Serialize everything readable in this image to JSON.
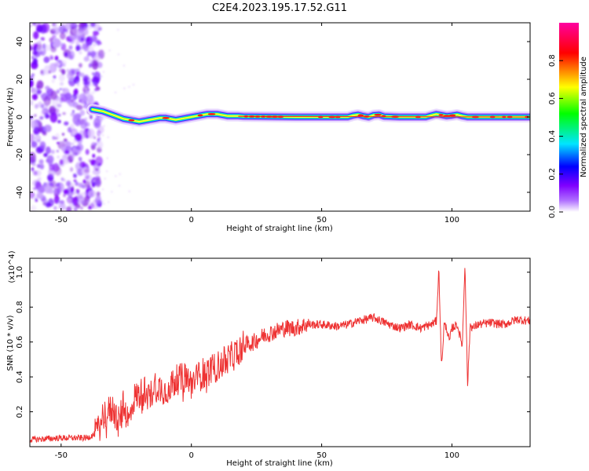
{
  "figure_title": "C2E4.2023.195.17.52.G11",
  "chart_data": [
    {
      "type": "heatmap",
      "title": "",
      "xlabel": "Height of straight line (km)",
      "ylabel": "Frequency (Hz)",
      "xlim": [
        -62,
        130
      ],
      "ylim": [
        -50,
        50
      ],
      "xticks": [
        -50,
        0,
        50,
        100
      ],
      "yticks": [
        -40,
        -20,
        0,
        20,
        40
      ],
      "grid": false,
      "noise_region_x": [
        -62,
        -37
      ],
      "ridge": {
        "x": [
          -38,
          -36,
          -34,
          -32,
          -30,
          -28,
          -26,
          -24,
          -22,
          -20,
          -18,
          -16,
          -14,
          -12,
          -10,
          -8,
          -6,
          -4,
          -2,
          0,
          2,
          4,
          6,
          8,
          10,
          12,
          14,
          16,
          18,
          20,
          40,
          60,
          62,
          64,
          66,
          68,
          70,
          72,
          74,
          80,
          90,
          92,
          94,
          96,
          98,
          100,
          102,
          104,
          106,
          110,
          130
        ],
        "freq_hz": [
          4,
          3.5,
          3,
          2,
          1,
          0,
          -1,
          -1.5,
          -2,
          -2.5,
          -2,
          -1.5,
          -1,
          -0.5,
          -0.5,
          -1,
          -1.5,
          -1,
          -0.5,
          0,
          0.5,
          1,
          1.5,
          1.5,
          1.5,
          1,
          0.5,
          0.5,
          0.5,
          0.3,
          0,
          0,
          0.8,
          1.2,
          0.5,
          0,
          1,
          1.2,
          0.3,
          0,
          0,
          0.8,
          1.5,
          1,
          0.5,
          0.8,
          1.2,
          0.5,
          0,
          0,
          0
        ]
      },
      "colorbar": {
        "label": "Normalized spectral amplitude",
        "range": [
          0,
          1
        ],
        "ticks": [
          "0.0",
          "0.2",
          "0.4",
          "0.6",
          "0.8"
        ],
        "tick_values": [
          0,
          0.2,
          0.4,
          0.6,
          0.8
        ],
        "colors": [
          "#ffffff",
          "#7f00ff",
          "#0000ff",
          "#00e5ff",
          "#00ff00",
          "#ffff00",
          "#ff0000",
          "#ff00a0"
        ]
      }
    },
    {
      "type": "line",
      "title": "",
      "xlabel": "Height of straight line (km)",
      "ylabel": "SNR (10 * v/v)",
      "y_multiplier": "(x10^4)",
      "xlim": [
        -62,
        130
      ],
      "ylim": [
        0,
        1.08
      ],
      "xticks": [
        -50,
        0,
        50,
        100
      ],
      "yticks": [
        "0.2",
        "0.4",
        "0.6",
        "0.8",
        "1.0"
      ],
      "ytick_values": [
        0.2,
        0.4,
        0.6,
        0.8,
        1.0
      ],
      "grid": false,
      "series": [
        {
          "color": "#ee3333",
          "x": [
            -62,
            -50,
            -40,
            -36,
            -34,
            -32,
            -30,
            -28,
            -26,
            -24,
            -22,
            -20,
            -18,
            -16,
            -14,
            -12,
            -10,
            -6,
            -2,
            0,
            4,
            8,
            12,
            16,
            20,
            24,
            28,
            32,
            36,
            40,
            44,
            50,
            56,
            60,
            64,
            70,
            76,
            80,
            84,
            88,
            92,
            94,
            95,
            96,
            97,
            98,
            99,
            100,
            102,
            104,
            105,
            106,
            107,
            108,
            110,
            115,
            120,
            125,
            130
          ],
          "y": [
            0.04,
            0.05,
            0.05,
            0.08,
            0.18,
            0.2,
            0.22,
            0.14,
            0.24,
            0.14,
            0.28,
            0.3,
            0.32,
            0.28,
            0.36,
            0.34,
            0.32,
            0.38,
            0.4,
            0.36,
            0.42,
            0.44,
            0.48,
            0.52,
            0.58,
            0.6,
            0.64,
            0.66,
            0.68,
            0.68,
            0.7,
            0.7,
            0.69,
            0.7,
            0.72,
            0.74,
            0.7,
            0.68,
            0.7,
            0.68,
            0.7,
            0.72,
            1.02,
            0.45,
            0.7,
            0.68,
            0.6,
            0.68,
            0.7,
            0.58,
            1.06,
            0.35,
            0.7,
            0.68,
            0.7,
            0.71,
            0.7,
            0.73,
            0.72
          ]
        }
      ]
    }
  ]
}
